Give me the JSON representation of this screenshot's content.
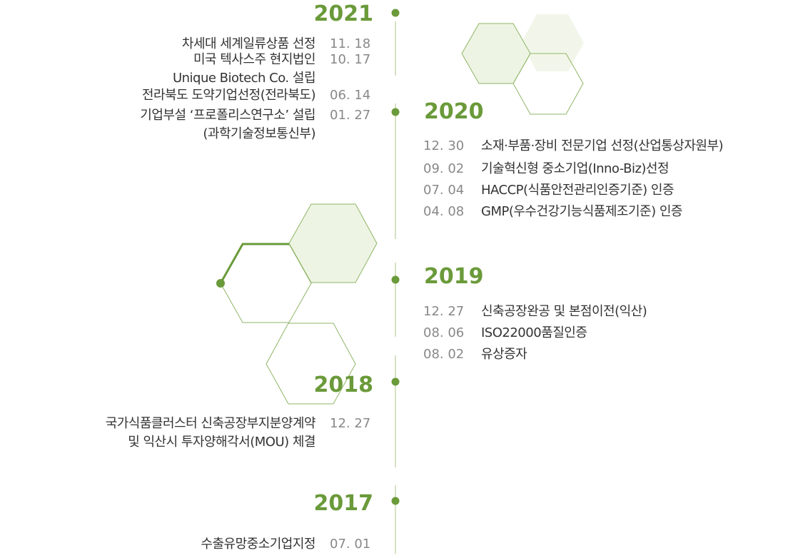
{
  "timeline": [
    {
      "year": "2021",
      "side": "left",
      "entries": [
        {
          "date": "11. 18",
          "lines": [
            "차세대 세계일류상품 선정"
          ]
        },
        {
          "date": "10. 17",
          "lines": [
            "미국 텍사스주 현지법인",
            "Unique Biotech Co. 설립"
          ]
        },
        {
          "date": "06. 14",
          "lines": [
            "전라북도 도약기업선정(전라북도)"
          ]
        },
        {
          "date": "01. 27",
          "lines": [
            "기업부설 ‘프로폴리스연구소’ 설립",
            "(과학기술정보통신부)"
          ]
        }
      ]
    },
    {
      "year": "2020",
      "side": "right",
      "entries": [
        {
          "date": "12. 30",
          "lines": [
            "소재·부품·장비 전문기업 선정(산업통상자원부)"
          ]
        },
        {
          "date": "09. 02",
          "lines": [
            "기술혁신형 중소기업(Inno-Biz)선정"
          ]
        },
        {
          "date": "07. 04",
          "lines": [
            "HACCP(식품안전관리인증기준) 인증"
          ]
        },
        {
          "date": "04. 08",
          "lines": [
            "GMP(우수건강기능식품제조기준) 인증"
          ]
        }
      ]
    },
    {
      "year": "2019",
      "side": "right",
      "entries": [
        {
          "date": "12. 27",
          "lines": [
            "신축공장완공 및 본점이전(익산)"
          ]
        },
        {
          "date": "08. 06",
          "lines": [
            "ISO22000품질인증"
          ]
        },
        {
          "date": "08. 02",
          "lines": [
            "유상증자"
          ]
        }
      ]
    },
    {
      "year": "2018",
      "side": "left",
      "entries": [
        {
          "date": "12. 27",
          "lines": [
            "국가식품클러스터 신축공장부지분양계약",
            "및 익산시 투자양해각서(MOU) 체결"
          ]
        }
      ]
    },
    {
      "year": "2017",
      "side": "left",
      "entries": [
        {
          "date": "07. 01",
          "lines": [
            "수출유망중소기업지정"
          ]
        }
      ]
    }
  ]
}
